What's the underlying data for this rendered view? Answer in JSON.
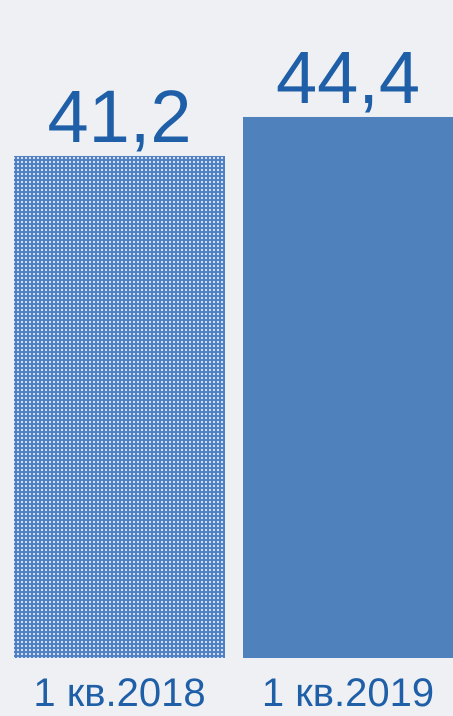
{
  "chart_data": {
    "type": "bar",
    "categories": [
      "1 кв.2018",
      "1 кв.2019"
    ],
    "values": [
      41.2,
      44.4
    ],
    "value_labels": [
      "41,2",
      "44,4"
    ],
    "title": "",
    "xlabel": "",
    "ylabel": "",
    "ylim": [
      0,
      54
    ],
    "grid": false,
    "legend": "none",
    "colors": {
      "bar_patterned_base": "#4f80c4",
      "bar_patterned_dots": "#dfe8f5",
      "bar_solid": "#4f81bd",
      "text": "#1f5fa8",
      "background": "#eef0f4"
    },
    "bar_styles": [
      "dotted-pattern",
      "solid"
    ]
  }
}
